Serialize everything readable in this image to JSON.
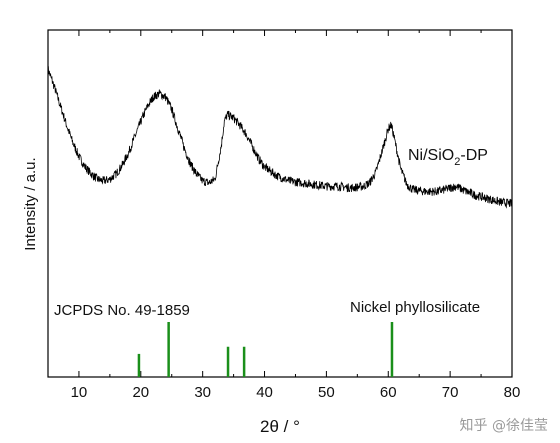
{
  "chart_data": {
    "type": "line",
    "xlabel": "2θ / °",
    "ylabel": "Intensity / a.u.",
    "xlim": [
      5,
      80
    ],
    "xticks": [
      10,
      20,
      30,
      40,
      50,
      60,
      70,
      80
    ],
    "xtick_labels": [
      "10",
      "20",
      "30",
      "40",
      "50",
      "60",
      "70",
      "80"
    ],
    "y_tick_labels_shown": false,
    "grid": false,
    "series": [
      {
        "name": "Ni/SiO2-DP",
        "label_base": "Ni/SiO",
        "label_sub": "2",
        "label_tail": "-DP",
        "color": "#000000",
        "x": [
          5,
          6,
          7,
          8,
          9,
          10,
          11,
          12,
          13,
          14,
          15,
          16,
          17,
          18,
          19,
          20,
          21,
          22,
          23,
          24,
          25,
          26,
          27,
          28,
          29,
          30,
          31,
          32,
          33,
          33.5,
          34,
          35,
          36,
          37,
          38,
          39,
          40,
          42,
          44,
          46,
          48,
          50,
          52,
          54,
          56,
          57,
          58,
          59,
          60,
          60.5,
          61,
          62,
          63,
          64,
          66,
          68,
          70,
          71,
          72,
          74,
          76,
          78,
          80
        ],
        "y": [
          0.92,
          0.82,
          0.71,
          0.6,
          0.5,
          0.42,
          0.36,
          0.32,
          0.29,
          0.28,
          0.29,
          0.32,
          0.37,
          0.44,
          0.53,
          0.62,
          0.7,
          0.76,
          0.78,
          0.76,
          0.69,
          0.58,
          0.47,
          0.38,
          0.32,
          0.28,
          0.27,
          0.29,
          0.48,
          0.62,
          0.66,
          0.64,
          0.6,
          0.55,
          0.48,
          0.41,
          0.36,
          0.31,
          0.28,
          0.27,
          0.26,
          0.25,
          0.25,
          0.24,
          0.25,
          0.27,
          0.33,
          0.45,
          0.58,
          0.6,
          0.52,
          0.35,
          0.26,
          0.23,
          0.22,
          0.22,
          0.24,
          0.25,
          0.23,
          0.2,
          0.18,
          0.16,
          0.15
        ],
        "noise": 0.025
      },
      {
        "name": "JCPDS No. 49-1859",
        "phase": "Nickel phyllosilicate",
        "type": "stick",
        "color": "#1a8f1a",
        "x": [
          19.7,
          24.5,
          34.1,
          36.7,
          60.6
        ],
        "y": [
          0.42,
          1.0,
          0.55,
          0.55,
          1.0
        ]
      }
    ]
  },
  "watermark": "知乎 @徐佳莹"
}
